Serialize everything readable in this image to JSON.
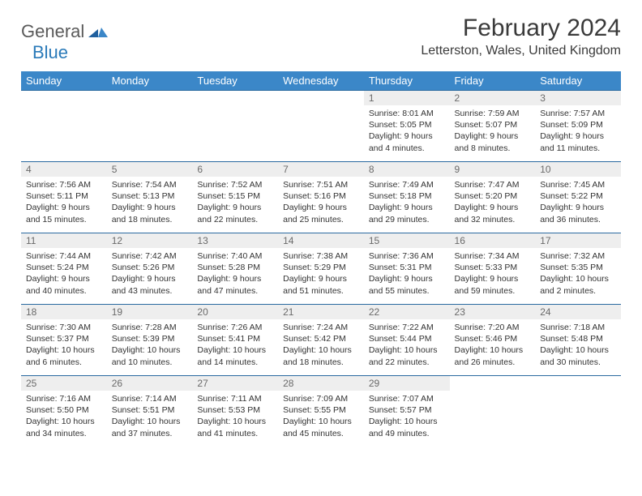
{
  "brand": {
    "line1": "General",
    "line2": "Blue"
  },
  "colors": {
    "header_bg": "#3b87c8",
    "header_text": "#ffffff",
    "daynum_bg": "#eeeeee",
    "daynum_text": "#6a6a6a",
    "cell_border": "#2a6aa0",
    "body_text": "#333333",
    "title_text": "#3a3a3a",
    "logo_gray": "#5a5a5a",
    "logo_blue": "#2a7ab9"
  },
  "title": "February 2024",
  "location": "Letterston, Wales, United Kingdom",
  "weekdays": [
    "Sunday",
    "Monday",
    "Tuesday",
    "Wednesday",
    "Thursday",
    "Friday",
    "Saturday"
  ],
  "first_weekday_index": 4,
  "days": [
    {
      "n": 1,
      "sunrise": "8:01 AM",
      "sunset": "5:05 PM",
      "dl_h": 9,
      "dl_m": 4
    },
    {
      "n": 2,
      "sunrise": "7:59 AM",
      "sunset": "5:07 PM",
      "dl_h": 9,
      "dl_m": 8
    },
    {
      "n": 3,
      "sunrise": "7:57 AM",
      "sunset": "5:09 PM",
      "dl_h": 9,
      "dl_m": 11
    },
    {
      "n": 4,
      "sunrise": "7:56 AM",
      "sunset": "5:11 PM",
      "dl_h": 9,
      "dl_m": 15
    },
    {
      "n": 5,
      "sunrise": "7:54 AM",
      "sunset": "5:13 PM",
      "dl_h": 9,
      "dl_m": 18
    },
    {
      "n": 6,
      "sunrise": "7:52 AM",
      "sunset": "5:15 PM",
      "dl_h": 9,
      "dl_m": 22
    },
    {
      "n": 7,
      "sunrise": "7:51 AM",
      "sunset": "5:16 PM",
      "dl_h": 9,
      "dl_m": 25
    },
    {
      "n": 8,
      "sunrise": "7:49 AM",
      "sunset": "5:18 PM",
      "dl_h": 9,
      "dl_m": 29
    },
    {
      "n": 9,
      "sunrise": "7:47 AM",
      "sunset": "5:20 PM",
      "dl_h": 9,
      "dl_m": 32
    },
    {
      "n": 10,
      "sunrise": "7:45 AM",
      "sunset": "5:22 PM",
      "dl_h": 9,
      "dl_m": 36
    },
    {
      "n": 11,
      "sunrise": "7:44 AM",
      "sunset": "5:24 PM",
      "dl_h": 9,
      "dl_m": 40
    },
    {
      "n": 12,
      "sunrise": "7:42 AM",
      "sunset": "5:26 PM",
      "dl_h": 9,
      "dl_m": 43
    },
    {
      "n": 13,
      "sunrise": "7:40 AM",
      "sunset": "5:28 PM",
      "dl_h": 9,
      "dl_m": 47
    },
    {
      "n": 14,
      "sunrise": "7:38 AM",
      "sunset": "5:29 PM",
      "dl_h": 9,
      "dl_m": 51
    },
    {
      "n": 15,
      "sunrise": "7:36 AM",
      "sunset": "5:31 PM",
      "dl_h": 9,
      "dl_m": 55
    },
    {
      "n": 16,
      "sunrise": "7:34 AM",
      "sunset": "5:33 PM",
      "dl_h": 9,
      "dl_m": 59
    },
    {
      "n": 17,
      "sunrise": "7:32 AM",
      "sunset": "5:35 PM",
      "dl_h": 10,
      "dl_m": 2
    },
    {
      "n": 18,
      "sunrise": "7:30 AM",
      "sunset": "5:37 PM",
      "dl_h": 10,
      "dl_m": 6
    },
    {
      "n": 19,
      "sunrise": "7:28 AM",
      "sunset": "5:39 PM",
      "dl_h": 10,
      "dl_m": 10
    },
    {
      "n": 20,
      "sunrise": "7:26 AM",
      "sunset": "5:41 PM",
      "dl_h": 10,
      "dl_m": 14
    },
    {
      "n": 21,
      "sunrise": "7:24 AM",
      "sunset": "5:42 PM",
      "dl_h": 10,
      "dl_m": 18
    },
    {
      "n": 22,
      "sunrise": "7:22 AM",
      "sunset": "5:44 PM",
      "dl_h": 10,
      "dl_m": 22
    },
    {
      "n": 23,
      "sunrise": "7:20 AM",
      "sunset": "5:46 PM",
      "dl_h": 10,
      "dl_m": 26
    },
    {
      "n": 24,
      "sunrise": "7:18 AM",
      "sunset": "5:48 PM",
      "dl_h": 10,
      "dl_m": 30
    },
    {
      "n": 25,
      "sunrise": "7:16 AM",
      "sunset": "5:50 PM",
      "dl_h": 10,
      "dl_m": 34
    },
    {
      "n": 26,
      "sunrise": "7:14 AM",
      "sunset": "5:51 PM",
      "dl_h": 10,
      "dl_m": 37
    },
    {
      "n": 27,
      "sunrise": "7:11 AM",
      "sunset": "5:53 PM",
      "dl_h": 10,
      "dl_m": 41
    },
    {
      "n": 28,
      "sunrise": "7:09 AM",
      "sunset": "5:55 PM",
      "dl_h": 10,
      "dl_m": 45
    },
    {
      "n": 29,
      "sunrise": "7:07 AM",
      "sunset": "5:57 PM",
      "dl_h": 10,
      "dl_m": 49
    }
  ],
  "labels": {
    "sunrise": "Sunrise",
    "sunset": "Sunset",
    "daylight": "Daylight",
    "hours": "hours",
    "and": "and",
    "minutes": "minutes."
  }
}
